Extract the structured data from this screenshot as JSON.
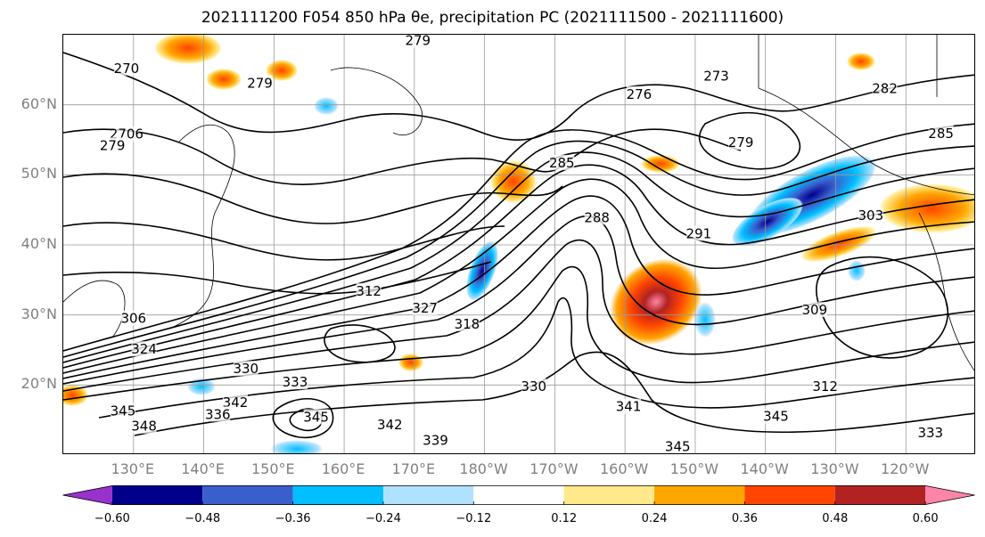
{
  "title": "2021111200 F054 850 hPa θe, precipitation PC (2021111500 - 2021111600)",
  "map": {
    "lat_labels": [
      {
        "text": "60°N",
        "lat": 60
      },
      {
        "text": "50°N",
        "lat": 50
      },
      {
        "text": "40°N",
        "lat": 40
      },
      {
        "text": "30°N",
        "lat": 30
      },
      {
        "text": "20°N",
        "lat": 20
      }
    ],
    "lon_labels": [
      {
        "text": "130°E",
        "lon": 130
      },
      {
        "text": "140°E",
        "lon": 140
      },
      {
        "text": "150°E",
        "lon": 150
      },
      {
        "text": "160°E",
        "lon": 160
      },
      {
        "text": "170°E",
        "lon": 170
      },
      {
        "text": "180°W",
        "lon": 180
      },
      {
        "text": "170°W",
        "lon": 190
      },
      {
        "text": "160°W",
        "lon": 200
      },
      {
        "text": "150°W",
        "lon": 210
      },
      {
        "text": "140°W",
        "lon": 220
      },
      {
        "text": "130°W",
        "lon": 230
      },
      {
        "text": "120°W",
        "lon": 240
      }
    ],
    "extent": {
      "lon_min": 120,
      "lon_max": 250,
      "lat_min": 10,
      "lat_max": 70
    },
    "contour_labels": [
      {
        "text": "279",
        "lon": 170.5,
        "lat": 69.2
      },
      {
        "text": "270",
        "lon": 129,
        "lat": 65.2
      },
      {
        "text": "279",
        "lon": 148,
        "lat": 63.1
      },
      {
        "text": "276",
        "lon": 202,
        "lat": 61.5
      },
      {
        "text": "273",
        "lon": 213,
        "lat": 64.1
      },
      {
        "text": "282",
        "lon": 237,
        "lat": 62.3
      },
      {
        "text": "2706",
        "lon": 129,
        "lat": 55.8
      },
      {
        "text": "279",
        "lon": 127,
        "lat": 54.2
      },
      {
        "text": "279",
        "lon": 216.5,
        "lat": 54.6
      },
      {
        "text": "285",
        "lon": 245,
        "lat": 55.9
      },
      {
        "text": "285",
        "lon": 191,
        "lat": 51.7
      },
      {
        "text": "288",
        "lon": 196,
        "lat": 43.9
      },
      {
        "text": "291",
        "lon": 210.5,
        "lat": 41.6
      },
      {
        "text": "303",
        "lon": 235,
        "lat": 44.2
      },
      {
        "text": "312",
        "lon": 163.5,
        "lat": 33.4
      },
      {
        "text": "327",
        "lon": 171.5,
        "lat": 31
      },
      {
        "text": "318",
        "lon": 177.5,
        "lat": 28.7
      },
      {
        "text": "306",
        "lon": 130,
        "lat": 29.5
      },
      {
        "text": "309",
        "lon": 227,
        "lat": 30.7
      },
      {
        "text": "324",
        "lon": 131.5,
        "lat": 25.1
      },
      {
        "text": "330",
        "lon": 146,
        "lat": 22.3
      },
      {
        "text": "333",
        "lon": 153,
        "lat": 20.4
      },
      {
        "text": "330",
        "lon": 187,
        "lat": 19.8
      },
      {
        "text": "312",
        "lon": 228.5,
        "lat": 19.8
      },
      {
        "text": "342",
        "lon": 144.5,
        "lat": 17.5
      },
      {
        "text": "345",
        "lon": 128.5,
        "lat": 16.3
      },
      {
        "text": "336",
        "lon": 142,
        "lat": 15.8
      },
      {
        "text": "345",
        "lon": 156,
        "lat": 15.4
      },
      {
        "text": "342",
        "lon": 166.5,
        "lat": 14.3
      },
      {
        "text": "348",
        "lon": 131.5,
        "lat": 14.1
      },
      {
        "text": "339",
        "lon": 173,
        "lat": 12.1
      },
      {
        "text": "345",
        "lon": 207.5,
        "lat": 11.2
      },
      {
        "text": "345",
        "lon": 221.5,
        "lat": 15.5
      },
      {
        "text": "333",
        "lon": 243.5,
        "lat": 13.2
      },
      {
        "text": "341",
        "lon": 200.5,
        "lat": 16.9
      }
    ]
  },
  "colorbar": {
    "ticks": [
      "−0.60",
      "−0.48",
      "−0.36",
      "−0.24",
      "−0.12",
      "0.12",
      "0.24",
      "0.36",
      "0.48",
      "0.60"
    ],
    "tick_values": [
      -0.6,
      -0.48,
      -0.36,
      -0.24,
      -0.12,
      0.12,
      0.24,
      0.36,
      0.48,
      0.6
    ],
    "colors": [
      "#9932cc",
      "#00008b",
      "#3a5fcd",
      "#00bfff",
      "#b0e2ff",
      "#ffffff",
      "#ffe98a",
      "#ffa500",
      "#ff4500",
      "#b22222",
      "#ff85a8"
    ],
    "extend": "both"
  }
}
